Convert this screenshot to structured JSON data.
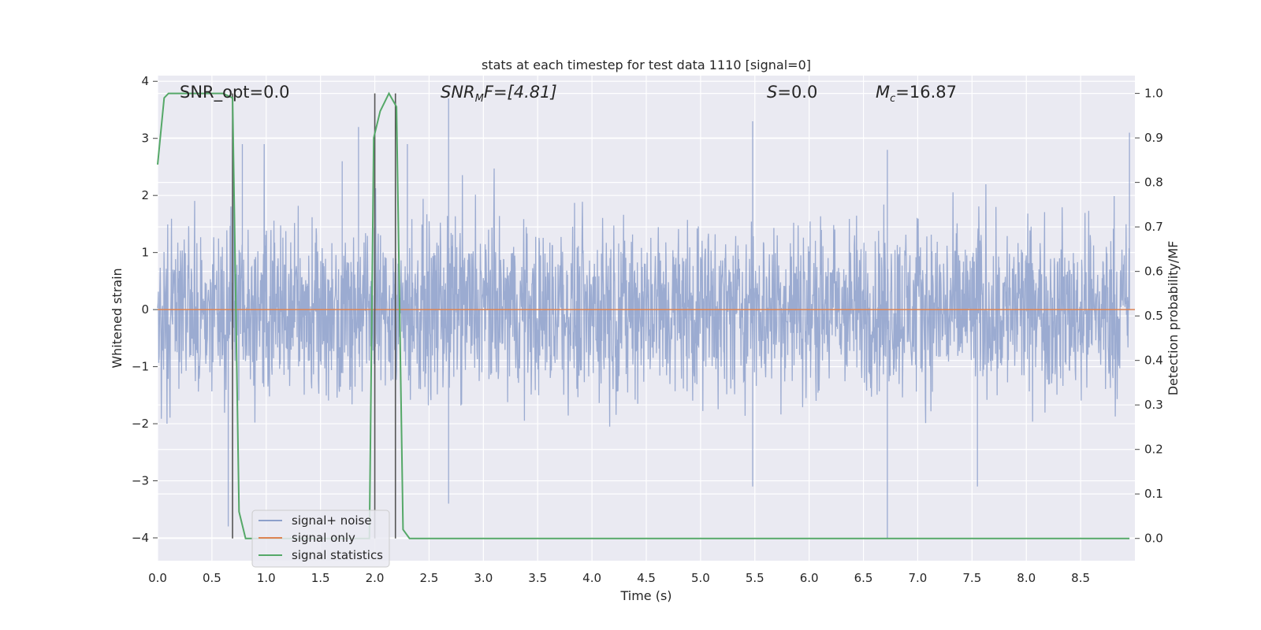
{
  "chart_data": {
    "type": "line",
    "title": "stats at each timestep for test data 1110 [signal=0]",
    "xlabel": "Time (s)",
    "ylabel": "Whitened strain",
    "y2label": "Detection probability/MF",
    "xlim": [
      0.0,
      9.0
    ],
    "ylim": [
      -4.4,
      4.1
    ],
    "y2lim": [
      -0.05,
      1.04
    ],
    "x_ticks": [
      0.0,
      0.5,
      1.0,
      1.5,
      2.0,
      2.5,
      3.0,
      3.5,
      4.0,
      4.5,
      5.0,
      5.5,
      6.0,
      6.5,
      7.0,
      7.5,
      8.0,
      8.5
    ],
    "x_tick_labels": [
      "0.0",
      "0.5",
      "1.0",
      "1.5",
      "2.0",
      "2.5",
      "3.0",
      "3.5",
      "4.0",
      "4.5",
      "5.0",
      "5.5",
      "6.0",
      "6.5",
      "7.0",
      "7.5",
      "8.0",
      "8.5"
    ],
    "y_ticks": [
      -4,
      -3,
      -2,
      -1,
      0,
      1,
      2,
      3,
      4
    ],
    "y_tick_labels": [
      "−4",
      "−3",
      "−2",
      "−1",
      "0",
      "1",
      "2",
      "3",
      "4"
    ],
    "y2_ticks": [
      0.0,
      0.1,
      0.2,
      0.3,
      0.4,
      0.5,
      0.6,
      0.7,
      0.8,
      0.9,
      1.0
    ],
    "y2_tick_labels": [
      "0.0",
      "0.1",
      "0.2",
      "0.3",
      "0.4",
      "0.5",
      "0.6",
      "0.7",
      "0.8",
      "0.9",
      "1.0"
    ],
    "grid": true,
    "legend_position": "lower-left",
    "annotations": {
      "snr_opt": "SNR_opt=0.0",
      "snr_mf_main": "SNR",
      "snr_mf_sub": "M",
      "snr_mf_rest": "F=[4.81]",
      "s_main": "S",
      "s_rest": "=0.0",
      "mc_main": "M",
      "mc_sub": "c",
      "mc_rest": "=16.87"
    },
    "series": [
      {
        "name": "signal+ noise",
        "color": "#8da0cb",
        "axis": "left",
        "amplitude_range": [
          -2.0,
          2.0
        ],
        "spikes": [
          [
            0.65,
            -3.8
          ],
          [
            0.7,
            2.6
          ],
          [
            0.78,
            2.9
          ],
          [
            1.7,
            2.6
          ],
          [
            1.85,
            3.2
          ],
          [
            2.3,
            2.9
          ],
          [
            2.68,
            3.7
          ],
          [
            2.68,
            -3.4
          ],
          [
            5.48,
            3.3
          ],
          [
            5.48,
            -3.1
          ],
          [
            6.35,
            -1.0
          ],
          [
            6.72,
            -4.0
          ],
          [
            6.72,
            2.8
          ],
          [
            7.55,
            -3.1
          ],
          [
            8.95,
            3.1
          ]
        ]
      },
      {
        "name": "signal only",
        "color": "#dd8452",
        "axis": "left",
        "x": [
          0.0,
          9.0
        ],
        "y": [
          0.0,
          0.0
        ]
      },
      {
        "name": "signal statistics",
        "color": "#55a868",
        "axis": "right",
        "x": [
          0.0,
          0.06,
          0.1,
          0.2,
          0.3,
          0.4,
          0.5,
          0.6,
          0.69,
          0.75,
          0.81,
          0.9,
          1.0,
          1.5,
          1.9,
          1.95,
          1.99,
          2.05,
          2.13,
          2.2,
          2.26,
          2.32,
          2.5,
          3.0,
          4.0,
          5.0,
          6.0,
          7.0,
          8.0,
          8.95
        ],
        "y": [
          0.84,
          0.99,
          1.0,
          1.0,
          1.0,
          1.0,
          1.0,
          1.0,
          0.99,
          0.06,
          0.0,
          0.0,
          0.0,
          0.0,
          0.0,
          0.0,
          0.9,
          0.96,
          1.0,
          0.97,
          0.02,
          0.0,
          0.0,
          0.0,
          0.0,
          0.0,
          0.0,
          0.0,
          0.0,
          0.0
        ]
      }
    ],
    "vertical_markers": [
      0.69,
      2.0,
      2.19
    ]
  }
}
